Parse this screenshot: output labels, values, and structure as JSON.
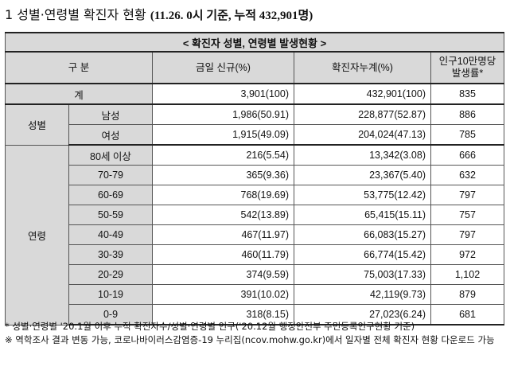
{
  "title": {
    "main": "1  성별·연령별 확진자 현황",
    "sub": "(11.26. 0시 기준, 누적 432,901명)"
  },
  "table": {
    "caption": "< 확진자 성별, 연령별 발생현황 >",
    "headers": {
      "category": "구  분",
      "new": "금일 신규(%)",
      "cumulative": "확진자누계(%)",
      "rate": "인구10만명당\n발생률*"
    },
    "total": {
      "label": "계",
      "new": "3,901(100)",
      "cumulative": "432,901(100)",
      "rate": "835"
    },
    "gender": {
      "group": "성별",
      "rows": [
        {
          "label": "남성",
          "new": "1,986(50.91)",
          "cumulative": "228,877(52.87)",
          "rate": "886"
        },
        {
          "label": "여성",
          "new": "1,915(49.09)",
          "cumulative": "204,024(47.13)",
          "rate": "785"
        }
      ]
    },
    "age": {
      "group": "연령",
      "rows": [
        {
          "label": "80세 이상",
          "new": "216(5.54)",
          "cumulative": "13,342(3.08)",
          "rate": "666"
        },
        {
          "label": "70-79",
          "new": "365(9.36)",
          "cumulative": "23,367(5.40)",
          "rate": "632"
        },
        {
          "label": "60-69",
          "new": "768(19.69)",
          "cumulative": "53,775(12.42)",
          "rate": "797"
        },
        {
          "label": "50-59",
          "new": "542(13.89)",
          "cumulative": "65,415(15.11)",
          "rate": "757"
        },
        {
          "label": "40-49",
          "new": "467(11.97)",
          "cumulative": "66,083(15.27)",
          "rate": "797"
        },
        {
          "label": "30-39",
          "new": "460(11.79)",
          "cumulative": "66,774(15.42)",
          "rate": "972"
        },
        {
          "label": "20-29",
          "new": "374(9.59)",
          "cumulative": "75,003(17.33)",
          "rate": "1,102"
        },
        {
          "label": "10-19",
          "new": "391(10.02)",
          "cumulative": "42,119(9.73)",
          "rate": "879"
        },
        {
          "label": "0-9",
          "new": "318(8.15)",
          "cumulative": "27,023(6.24)",
          "rate": "681"
        }
      ]
    }
  },
  "notes": {
    "note1": "* 성별·연령별 '20.1월 이후 누적 확진자수/성별·연령별 인구('20.12월 행정안전부 주민등록인구현황 기준)",
    "note2": "※ 역학조사 결과 변동 가능, 코로나바이러스감염증-19 누리집(ncov.mohw.go.kr)에서 일자별 전체 확진자 현황 다운로드 가능"
  }
}
